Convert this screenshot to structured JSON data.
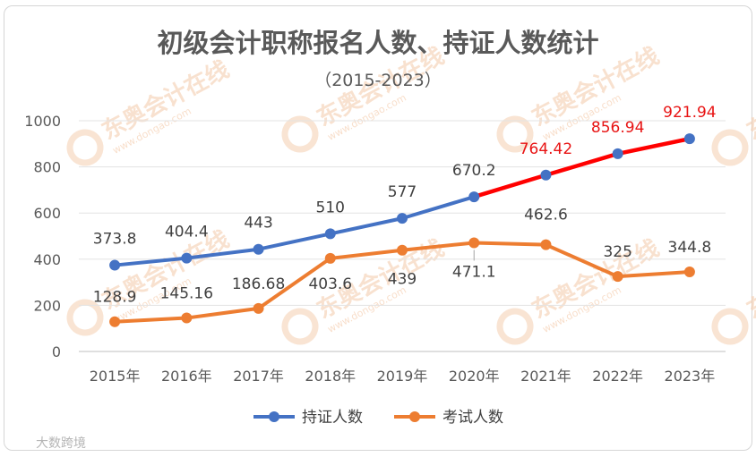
{
  "chart_data": {
    "type": "line",
    "title": "初级会计职称报名人数、持证人数统计",
    "subtitle": "（2015-2023）",
    "categories": [
      "2015年",
      "2016年",
      "2017年",
      "2018年",
      "2019年",
      "2020年",
      "2021年",
      "2022年",
      "2023年"
    ],
    "ylim": [
      0,
      1000
    ],
    "yticks": [
      "0",
      "200",
      "400",
      "600",
      "800",
      "1000"
    ],
    "grid": true,
    "legend_position": "bottom",
    "series": [
      {
        "name": "持证人数",
        "color": "#4472c4",
        "highlight_color": "#ff0000",
        "values": [
          373.8,
          404.4,
          443,
          510,
          577,
          670.2,
          764.42,
          856.94,
          921.94
        ],
        "labels": [
          "373.8",
          "404.4",
          "443",
          "510",
          "577",
          "670.2",
          "764.42",
          "856.94",
          "921.94"
        ]
      },
      {
        "name": "考试人数",
        "color": "#ed7d31",
        "values": [
          128.9,
          145.16,
          186.68,
          403.6,
          439,
          471.1,
          462.6,
          325,
          344.8
        ],
        "labels": [
          "128.9",
          "145.16",
          "186.68",
          "403.6",
          "439",
          "471.1",
          "462.6",
          "325",
          "344.8"
        ]
      }
    ]
  },
  "watermark": {
    "text": "东奥会计在线",
    "url": "www.dongao.com",
    "color": "#f4c9a8"
  },
  "corner_brand": {
    "text": "大数跨境"
  }
}
